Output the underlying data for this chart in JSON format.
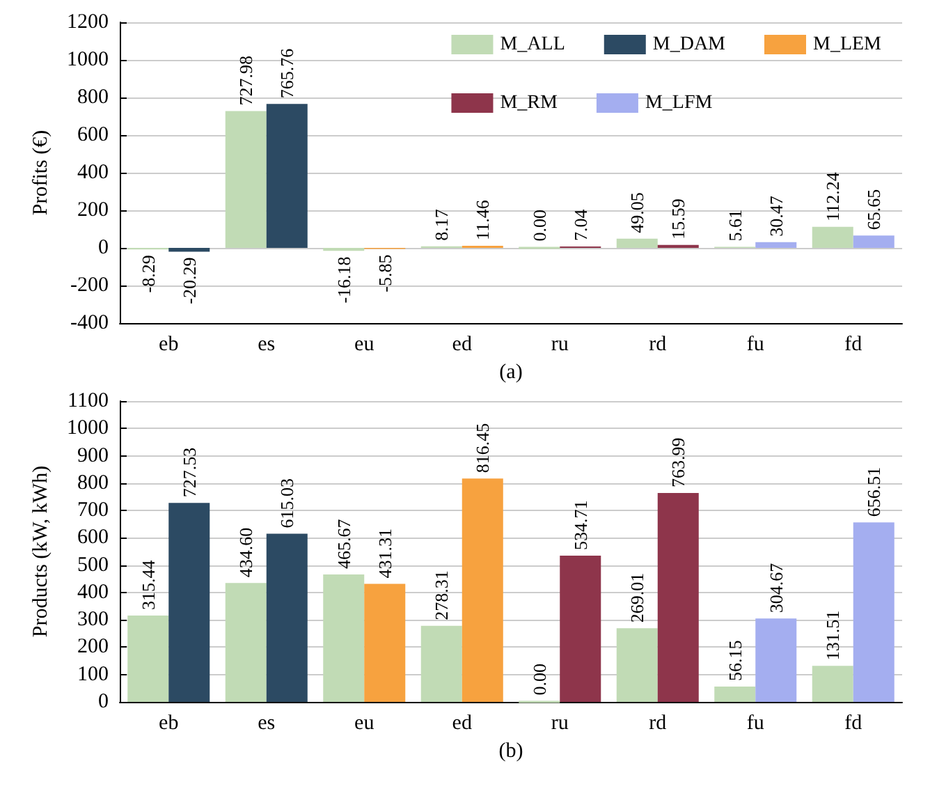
{
  "chart_data": [
    {
      "type": "bar",
      "ylabel": "Profits (€)",
      "xlabel": "(a)",
      "categories": [
        "eb",
        "es",
        "eu",
        "ed",
        "ru",
        "rd",
        "fu",
        "fd"
      ],
      "ylim": [
        -400,
        1200
      ],
      "yticks": [
        -400,
        -200,
        0,
        200,
        400,
        600,
        800,
        1000,
        1200
      ],
      "grid": "y",
      "legend": "top right",
      "series": [
        {
          "name": "M_ALL",
          "color": "#c1dbb5",
          "values": [
            -8.29,
            727.98,
            -16.18,
            8.17,
            0,
            49.05,
            5.61,
            112.24
          ],
          "value_labels": [
            "-8.29",
            "727.98",
            "-16.18",
            "8.17",
            "0.00",
            "49.05",
            "5.61",
            "112.24"
          ]
        },
        {
          "name": "M_DAM",
          "color": "#2c4a63",
          "values": [
            -20.29,
            765.76,
            null,
            null,
            null,
            null,
            null,
            null
          ],
          "value_labels": [
            "-20.29",
            "765.76",
            null,
            null,
            null,
            null,
            null,
            null
          ]
        },
        {
          "name": "M_LEM",
          "color": "#f7a23f",
          "values": [
            null,
            null,
            -5.85,
            11.46,
            null,
            null,
            null,
            null
          ],
          "value_labels": [
            null,
            null,
            "-5.85",
            "11.46",
            null,
            null,
            null,
            null
          ]
        },
        {
          "name": "M_RM",
          "color": "#8e354b",
          "values": [
            null,
            null,
            null,
            null,
            7.04,
            15.59,
            null,
            null
          ],
          "value_labels": [
            null,
            null,
            null,
            null,
            "7.04",
            "15.59",
            null,
            null
          ]
        },
        {
          "name": "M_LFM",
          "color": "#a4aef0",
          "values": [
            null,
            null,
            null,
            null,
            null,
            null,
            30.47,
            65.65
          ],
          "value_labels": [
            null,
            null,
            null,
            null,
            null,
            null,
            "30.47",
            "65.65"
          ]
        }
      ]
    },
    {
      "type": "bar",
      "ylabel": "Products (kW, kWh)",
      "xlabel": "(b)",
      "categories": [
        "eb",
        "es",
        "eu",
        "ed",
        "ru",
        "rd",
        "fu",
        "fd"
      ],
      "ylim": [
        0,
        1100
      ],
      "yticks": [
        0,
        100,
        200,
        300,
        400,
        500,
        600,
        700,
        800,
        900,
        1000,
        1100
      ],
      "grid": "y",
      "legend": false,
      "series": [
        {
          "color": "#c1dbb5",
          "values": [
            315.44,
            434.6,
            465.67,
            278.31,
            0,
            269.01,
            56.15,
            131.51
          ],
          "value_labels": [
            "315.44",
            "434.60",
            "465.67",
            "278.31",
            "0.00",
            "269.01",
            "56.15",
            "131.51"
          ]
        },
        {
          "color": "#2c4a63",
          "values": [
            727.53,
            615.03,
            null,
            null,
            null,
            null,
            null,
            null
          ],
          "value_labels": [
            "727.53",
            "615.03",
            null,
            null,
            null,
            null,
            null,
            null
          ]
        },
        {
          "color": "#f7a23f",
          "values": [
            null,
            null,
            431.31,
            816.45,
            null,
            null,
            null,
            null
          ],
          "value_labels": [
            null,
            null,
            "431.31",
            "816.45",
            null,
            null,
            null,
            null
          ]
        },
        {
          "color": "#8e354b",
          "values": [
            null,
            null,
            null,
            null,
            534.71,
            763.99,
            null,
            null
          ],
          "value_labels": [
            null,
            null,
            null,
            null,
            "534.71",
            "763.99",
            null,
            null
          ]
        },
        {
          "color": "#a4aef0",
          "values": [
            null,
            null,
            null,
            null,
            null,
            null,
            304.67,
            656.51
          ],
          "value_labels": [
            null,
            null,
            null,
            null,
            null,
            null,
            "304.67",
            "656.51"
          ]
        }
      ]
    }
  ]
}
